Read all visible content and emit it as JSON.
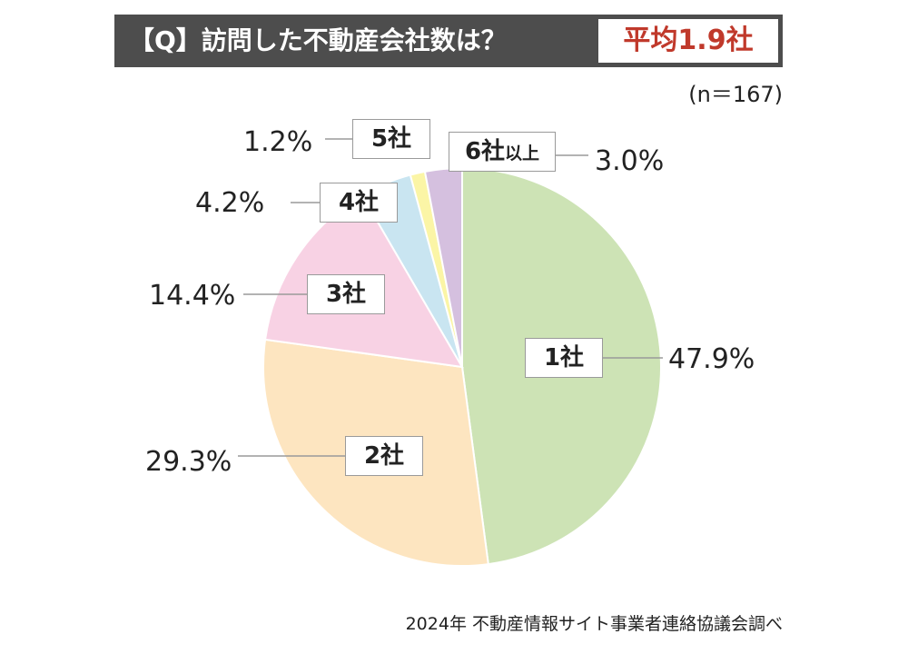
{
  "header": {
    "question": "【Q】訪問した不動産会社数は？",
    "average": "平均1.9社",
    "sample": "(n＝167)"
  },
  "chart_data": {
    "type": "pie",
    "title": "【Q】訪問した不動産会社数は？",
    "categories": [
      "1社",
      "2社",
      "3社",
      "4社",
      "5社",
      "6社以上"
    ],
    "values": [
      47.9,
      29.3,
      14.4,
      4.2,
      1.2,
      3.0
    ],
    "value_labels": [
      "47.9%",
      "29.3%",
      "14.4%",
      "4.2%",
      "1.2%",
      "3.0%"
    ],
    "colors": [
      "#cde3b5",
      "#fde5c0",
      "#f8d2e4",
      "#c9e5f1",
      "#fbf5a6",
      "#d5c0df"
    ],
    "start": "12 o'clock",
    "direction": "clockwise",
    "legend": "none"
  },
  "labels": {
    "c1": "1社",
    "c2": "2社",
    "c3": "3社",
    "c4": "4社",
    "c5": "5社",
    "c6_main": "6社",
    "c6_small": "以上"
  },
  "source": "2024年 不動産情報サイト事業者連絡協議会調べ"
}
